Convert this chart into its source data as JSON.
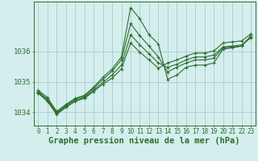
{
  "bg_color": "#d4eeee",
  "grid_color": "#aacccc",
  "line_color": "#2d6e2d",
  "xlabel": "Graphe pression niveau de la mer (hPa)",
  "xlabel_fontsize": 7.5,
  "ylabel_fontsize": 6.5,
  "tick_fontsize": 5.5,
  "yticks": [
    1034,
    1035,
    1036
  ],
  "xticks": [
    0,
    1,
    2,
    3,
    4,
    5,
    6,
    7,
    8,
    9,
    10,
    11,
    12,
    13,
    14,
    15,
    16,
    17,
    18,
    19,
    20,
    21,
    22,
    23
  ],
  "xlim": [
    -0.5,
    23.5
  ],
  "ylim": [
    1033.55,
    1037.65
  ],
  "series": [
    [
      1034.72,
      1034.48,
      1034.02,
      1034.25,
      1034.45,
      1034.55,
      1034.82,
      1035.15,
      1035.42,
      1035.82,
      1037.45,
      1037.08,
      1036.55,
      1036.25,
      1035.08,
      1035.22,
      1035.48,
      1035.55,
      1035.55,
      1035.62,
      1036.08,
      1036.12,
      1036.18,
      1036.52
    ],
    [
      1034.68,
      1034.42,
      1033.98,
      1034.22,
      1034.42,
      1034.52,
      1034.78,
      1035.08,
      1035.35,
      1035.72,
      1036.92,
      1036.52,
      1036.18,
      1035.82,
      1035.32,
      1035.48,
      1035.62,
      1035.72,
      1035.72,
      1035.78,
      1036.12,
      1036.15,
      1036.18,
      1036.48
    ],
    [
      1034.65,
      1034.38,
      1033.95,
      1034.18,
      1034.38,
      1034.48,
      1034.72,
      1034.98,
      1035.22,
      1035.55,
      1036.55,
      1036.22,
      1035.92,
      1035.62,
      1035.48,
      1035.58,
      1035.72,
      1035.82,
      1035.82,
      1035.88,
      1036.15,
      1036.18,
      1036.22,
      1036.45
    ],
    [
      1034.62,
      1034.35,
      1033.92,
      1034.15,
      1034.35,
      1034.45,
      1034.68,
      1034.92,
      1035.12,
      1035.42,
      1036.28,
      1035.98,
      1035.72,
      1035.45,
      1035.62,
      1035.72,
      1035.85,
      1035.95,
      1035.95,
      1036.02,
      1036.28,
      1036.32,
      1036.35,
      1036.58
    ]
  ]
}
